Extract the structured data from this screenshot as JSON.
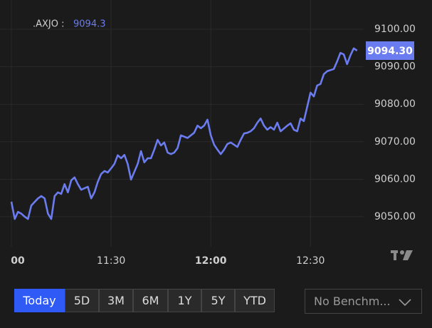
{
  "chart_data": {
    "type": "line",
    "symbol": ".AXJO :",
    "last_price": 9094.3,
    "last_price_label": "9094.30",
    "color": "#6b7cf0",
    "x": [
      "11:00",
      "11:01",
      "11:02",
      "11:03",
      "11:04",
      "11:05",
      "11:06",
      "11:08",
      "11:09",
      "11:10",
      "11:11",
      "11:12",
      "11:13",
      "11:14",
      "11:15",
      "11:16",
      "11:17",
      "11:18",
      "11:19",
      "11:20",
      "11:21",
      "11:23",
      "11:24",
      "11:25",
      "11:26",
      "11:27",
      "11:28",
      "11:29",
      "11:30",
      "11:31",
      "11:32",
      "11:33",
      "11:34",
      "11:35",
      "11:36",
      "11:38",
      "11:39",
      "11:40",
      "11:41",
      "11:42",
      "11:43",
      "11:44",
      "11:45",
      "11:46",
      "11:47",
      "11:48",
      "11:49",
      "11:50",
      "11:51",
      "11:53",
      "11:54",
      "11:55",
      "11:56",
      "11:57",
      "11:58",
      "11:59",
      "12:00",
      "12:01",
      "12:02",
      "12:03",
      "12:04",
      "12:05",
      "12:06",
      "12:08",
      "12:09",
      "12:10",
      "12:11",
      "12:12",
      "12:13",
      "12:14",
      "12:15",
      "12:16",
      "12:17",
      "12:18",
      "12:19",
      "12:20",
      "12:21",
      "12:23",
      "12:24",
      "12:25",
      "12:26",
      "12:27",
      "12:28",
      "12:29",
      "12:30",
      "12:31",
      "12:32",
      "12:33",
      "12:34",
      "12:35",
      "12:37",
      "12:38",
      "12:39",
      "12:40",
      "12:41",
      "12:42",
      "12:43",
      "12:44"
    ],
    "values": [
      9054.0,
      9049.4,
      9051.3,
      9050.8,
      9050.0,
      9049.4,
      9053.0,
      9054.9,
      9055.5,
      9054.9,
      9050.8,
      9049.4,
      9055.5,
      9056.5,
      9056.1,
      9058.7,
      9056.5,
      9059.7,
      9060.5,
      9058.7,
      9057.2,
      9058.0,
      9054.9,
      9056.5,
      9059.3,
      9061.4,
      9062.2,
      9061.8,
      9062.9,
      9064.1,
      9066.4,
      9065.6,
      9066.5,
      9064.1,
      9059.9,
      9064.1,
      9067.5,
      9064.5,
      9065.6,
      9065.6,
      9067.9,
      9070.5,
      9069.0,
      9069.8,
      9067.1,
      9066.7,
      9067.1,
      9068.3,
      9071.7,
      9071.0,
      9071.7,
      9072.4,
      9074.3,
      9073.6,
      9074.3,
      9075.9,
      9071.7,
      9069.2,
      9067.9,
      9066.7,
      9067.9,
      9069.4,
      9069.8,
      9068.6,
      9070.5,
      9072.2,
      9072.4,
      9072.8,
      9073.6,
      9075.1,
      9076.2,
      9074.3,
      9073.2,
      9073.9,
      9073.2,
      9075.1,
      9072.8,
      9074.3,
      9074.9,
      9073.2,
      9072.8,
      9076.2,
      9075.5,
      9079.3,
      9083.1,
      9082.1,
      9085.0,
      9085.4,
      9088.0,
      9088.8,
      9089.4,
      9091.4,
      9093.7,
      9093.3,
      9090.7,
      9093.0,
      9094.9,
      9094.3
    ],
    "xlim": [
      "11:00",
      "12:46"
    ],
    "xticks": [
      {
        "value": "11:00",
        "label": "00"
      },
      "11:30",
      "12:00",
      "12:30"
    ],
    "ylim": [
      9042,
      9104
    ],
    "yticks": [
      {
        "value": 9050,
        "label": "9050.00"
      },
      {
        "value": 9060,
        "label": "9060.00"
      },
      {
        "value": 9070,
        "label": "9070.00"
      },
      {
        "value": 9080,
        "label": "9080.00"
      },
      {
        "value": 9090,
        "label": "9090.00"
      },
      {
        "value": 9100,
        "label": "9100.00"
      }
    ],
    "grid": true
  },
  "controls": {
    "ranges": [
      "Today",
      "5D",
      "3M",
      "6M",
      "1Y",
      "5Y",
      "YTD"
    ],
    "active": 0,
    "benchmark": "No Benchm..."
  }
}
